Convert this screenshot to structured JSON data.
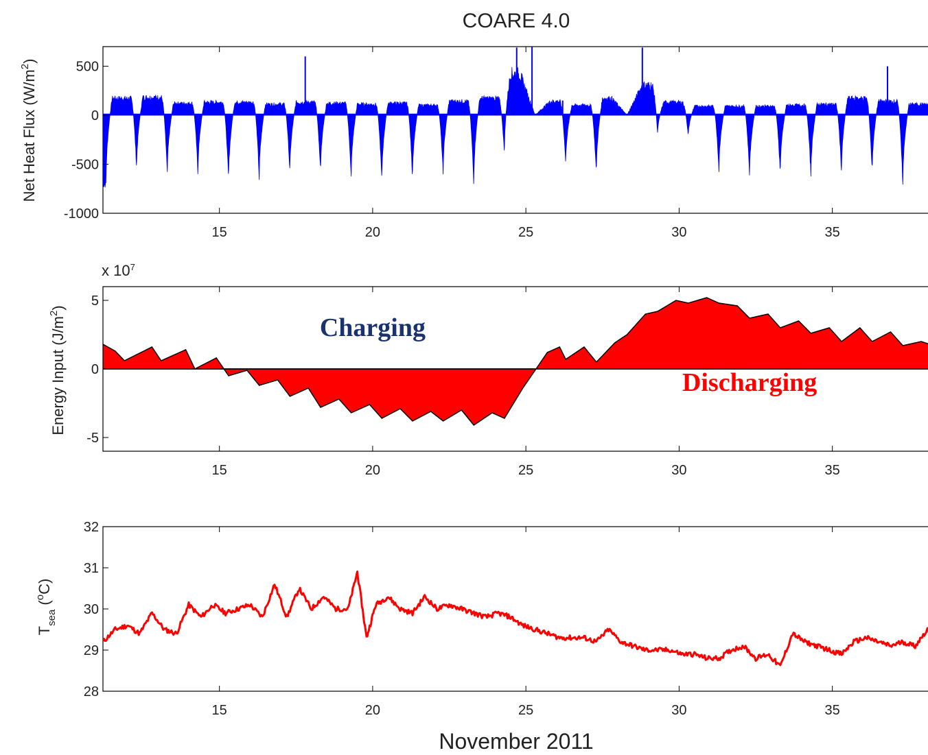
{
  "figure": {
    "title": "COARE 4.0",
    "xlabel": "November 2011"
  },
  "chart_data": [
    {
      "type": "area",
      "ylabel": "Net Heat Flux (W/m²)",
      "ylabel_base": "Net Heat Flux (W/m",
      "ylabel_sup": "2",
      "ylabel_tail": ")",
      "xlim": [
        11.2,
        38.3
      ],
      "ylim": [
        -1000,
        700
      ],
      "xticks": [
        15,
        20,
        25,
        30,
        35
      ],
      "yticks": [
        -1000,
        -500,
        0,
        500
      ],
      "color": "#0000ff",
      "day_peaks": [
        [
          11.3,
          -700
        ],
        [
          12.3,
          -560
        ],
        [
          13.3,
          -610
        ],
        [
          14.3,
          -600
        ],
        [
          15.3,
          -680
        ],
        [
          16.3,
          -650
        ],
        [
          17.3,
          -590
        ],
        [
          18.3,
          -590
        ],
        [
          19.3,
          -640
        ],
        [
          20.3,
          -680
        ],
        [
          21.3,
          -640
        ],
        [
          22.3,
          -600
        ],
        [
          23.3,
          -700
        ],
        [
          24.3,
          -400
        ],
        [
          25.3,
          0
        ],
        [
          26.3,
          -500
        ],
        [
          27.3,
          -610
        ],
        [
          28.3,
          0
        ],
        [
          29.3,
          -200
        ],
        [
          30.3,
          -220
        ],
        [
          31.3,
          -560
        ],
        [
          32.3,
          -610
        ],
        [
          33.3,
          -600
        ],
        [
          34.3,
          -610
        ],
        [
          35.3,
          -590
        ],
        [
          36.3,
          -590
        ],
        [
          37.3,
          -690
        ]
      ],
      "night_levels": [
        [
          11.8,
          170
        ],
        [
          12.8,
          180
        ],
        [
          13.8,
          120
        ],
        [
          14.8,
          130
        ],
        [
          15.8,
          130
        ],
        [
          16.8,
          110
        ],
        [
          17.8,
          130
        ],
        [
          18.8,
          120
        ],
        [
          19.8,
          110
        ],
        [
          20.8,
          120
        ],
        [
          21.8,
          100
        ],
        [
          22.8,
          140
        ],
        [
          23.8,
          170
        ],
        [
          24.8,
          420
        ],
        [
          25.8,
          140
        ],
        [
          26.8,
          100
        ],
        [
          27.8,
          170
        ],
        [
          28.8,
          300
        ],
        [
          29.8,
          130
        ],
        [
          30.8,
          90
        ],
        [
          31.8,
          90
        ],
        [
          32.8,
          90
        ],
        [
          33.8,
          100
        ],
        [
          34.8,
          110
        ],
        [
          35.8,
          170
        ],
        [
          36.8,
          140
        ],
        [
          37.8,
          110
        ]
      ],
      "spikes": [
        [
          17.8,
          600
        ],
        [
          24.7,
          690
        ],
        [
          25.2,
          700
        ],
        [
          28.8,
          690
        ],
        [
          36.8,
          500
        ],
        [
          26.2,
          150
        ]
      ]
    },
    {
      "type": "area",
      "ylabel": "Energy Input (J/m²)",
      "ylabel_base": "Energy Input (J/m",
      "ylabel_sup": "2",
      "ylabel_tail": ")",
      "multiplier": "x 10",
      "multiplier_exp": "7",
      "xlim": [
        11.2,
        38.3
      ],
      "ylim": [
        -6,
        6
      ],
      "xticks": [
        15,
        20,
        25,
        30,
        35
      ],
      "yticks": [
        -5,
        0,
        5
      ],
      "color": "#ff0000",
      "points": [
        [
          11.2,
          1.8
        ],
        [
          11.6,
          1.3
        ],
        [
          11.9,
          0.6
        ],
        [
          12.8,
          1.6
        ],
        [
          13.1,
          0.6
        ],
        [
          13.9,
          1.4
        ],
        [
          14.2,
          0.0
        ],
        [
          14.9,
          0.8
        ],
        [
          15.3,
          -0.5
        ],
        [
          15.9,
          -0.1
        ],
        [
          16.3,
          -1.2
        ],
        [
          16.9,
          -0.8
        ],
        [
          17.3,
          -2.0
        ],
        [
          17.9,
          -1.4
        ],
        [
          18.3,
          -2.8
        ],
        [
          18.9,
          -2.2
        ],
        [
          19.3,
          -3.2
        ],
        [
          19.9,
          -2.6
        ],
        [
          20.3,
          -3.6
        ],
        [
          20.9,
          -2.9
        ],
        [
          21.3,
          -3.8
        ],
        [
          21.9,
          -3.1
        ],
        [
          22.3,
          -3.8
        ],
        [
          22.9,
          -3.0
        ],
        [
          23.3,
          -4.1
        ],
        [
          23.9,
          -3.2
        ],
        [
          24.3,
          -3.6
        ],
        [
          24.9,
          -1.4
        ],
        [
          25.3,
          -0.1
        ],
        [
          25.7,
          1.2
        ],
        [
          26.1,
          1.6
        ],
        [
          26.3,
          0.7
        ],
        [
          26.9,
          1.6
        ],
        [
          27.3,
          0.5
        ],
        [
          27.9,
          1.9
        ],
        [
          28.3,
          2.5
        ],
        [
          28.9,
          4.0
        ],
        [
          29.3,
          4.2
        ],
        [
          29.9,
          5.0
        ],
        [
          30.3,
          4.8
        ],
        [
          30.9,
          5.2
        ],
        [
          31.3,
          4.8
        ],
        [
          31.9,
          4.6
        ],
        [
          32.3,
          3.7
        ],
        [
          32.9,
          4.0
        ],
        [
          33.3,
          3.0
        ],
        [
          33.9,
          3.5
        ],
        [
          34.3,
          2.6
        ],
        [
          34.9,
          3.0
        ],
        [
          35.3,
          2.0
        ],
        [
          35.9,
          3.0
        ],
        [
          36.3,
          2.0
        ],
        [
          36.9,
          2.7
        ],
        [
          37.3,
          1.7
        ],
        [
          37.9,
          2.0
        ],
        [
          38.3,
          1.7
        ]
      ],
      "annotations": [
        {
          "text": "Charging",
          "x": 20.0,
          "y": 2.4,
          "color": "#1a3370"
        },
        {
          "text": "Discharging",
          "x": 32.3,
          "y": -1.6,
          "color": "#ff0000"
        }
      ]
    },
    {
      "type": "line",
      "ylabel": "T_sea (°C)",
      "ylabel_main": "T",
      "ylabel_sub": "sea",
      "ylabel_open": " (",
      "ylabel_sup": "o",
      "ylabel_tail": "C)",
      "xlim": [
        11.2,
        38.3
      ],
      "ylim": [
        28,
        32
      ],
      "xticks": [
        15,
        20,
        25,
        30,
        35
      ],
      "yticks": [
        28,
        29,
        30,
        31,
        32
      ],
      "color": "#ff0000",
      "points": [
        [
          11.2,
          29.2
        ],
        [
          11.6,
          29.5
        ],
        [
          12.0,
          29.6
        ],
        [
          12.4,
          29.4
        ],
        [
          12.8,
          29.9
        ],
        [
          13.2,
          29.5
        ],
        [
          13.6,
          29.4
        ],
        [
          14.0,
          30.1
        ],
        [
          14.4,
          29.8
        ],
        [
          14.8,
          30.1
        ],
        [
          15.2,
          29.9
        ],
        [
          15.6,
          30.0
        ],
        [
          16.0,
          30.1
        ],
        [
          16.4,
          29.8
        ],
        [
          16.8,
          30.6
        ],
        [
          17.2,
          29.8
        ],
        [
          17.6,
          30.5
        ],
        [
          18.0,
          30.0
        ],
        [
          18.4,
          30.3
        ],
        [
          18.8,
          30.0
        ],
        [
          19.2,
          30.0
        ],
        [
          19.5,
          30.9
        ],
        [
          19.8,
          29.3
        ],
        [
          20.1,
          30.1
        ],
        [
          20.5,
          30.3
        ],
        [
          20.9,
          30.0
        ],
        [
          21.3,
          29.9
        ],
        [
          21.7,
          30.3
        ],
        [
          22.1,
          30.0
        ],
        [
          22.5,
          30.1
        ],
        [
          22.9,
          30.0
        ],
        [
          23.3,
          29.9
        ],
        [
          23.7,
          29.8
        ],
        [
          24.1,
          29.9
        ],
        [
          24.5,
          29.8
        ],
        [
          24.9,
          29.6
        ],
        [
          25.3,
          29.5
        ],
        [
          25.7,
          29.4
        ],
        [
          26.1,
          29.3
        ],
        [
          26.5,
          29.3
        ],
        [
          26.9,
          29.3
        ],
        [
          27.3,
          29.2
        ],
        [
          27.7,
          29.5
        ],
        [
          28.1,
          29.2
        ],
        [
          28.5,
          29.1
        ],
        [
          28.9,
          29.0
        ],
        [
          29.3,
          29.0
        ],
        [
          29.7,
          29.0
        ],
        [
          30.1,
          28.9
        ],
        [
          30.5,
          28.9
        ],
        [
          30.9,
          28.8
        ],
        [
          31.3,
          28.8
        ],
        [
          31.7,
          29.0
        ],
        [
          32.1,
          29.1
        ],
        [
          32.5,
          28.8
        ],
        [
          32.9,
          28.9
        ],
        [
          33.3,
          28.6
        ],
        [
          33.7,
          29.4
        ],
        [
          34.1,
          29.2
        ],
        [
          34.5,
          29.1
        ],
        [
          34.9,
          29.0
        ],
        [
          35.3,
          28.9
        ],
        [
          35.7,
          29.2
        ],
        [
          36.1,
          29.3
        ],
        [
          36.5,
          29.2
        ],
        [
          36.9,
          29.1
        ],
        [
          37.3,
          29.2
        ],
        [
          37.7,
          29.1
        ],
        [
          38.1,
          29.5
        ],
        [
          38.3,
          29.4
        ]
      ]
    }
  ]
}
